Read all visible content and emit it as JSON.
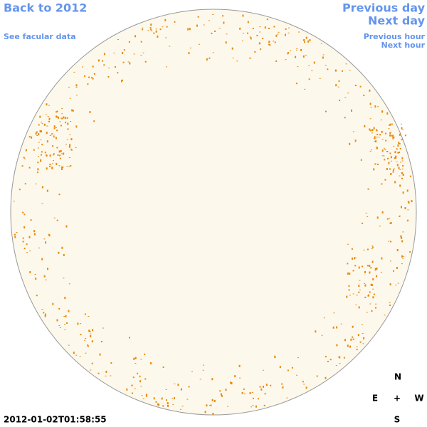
{
  "nav": {
    "back": "Back to 2012",
    "facular": "See facular data",
    "previous_day": "Previous day",
    "next_day": "Next day",
    "previous_hour": "Previous hour",
    "next_hour": "Next hour"
  },
  "timestamp": "2012-01-02T01:58:55",
  "compass": {
    "north": "N",
    "east": "E",
    "center": "+",
    "west": "W",
    "south": "S"
  }
}
